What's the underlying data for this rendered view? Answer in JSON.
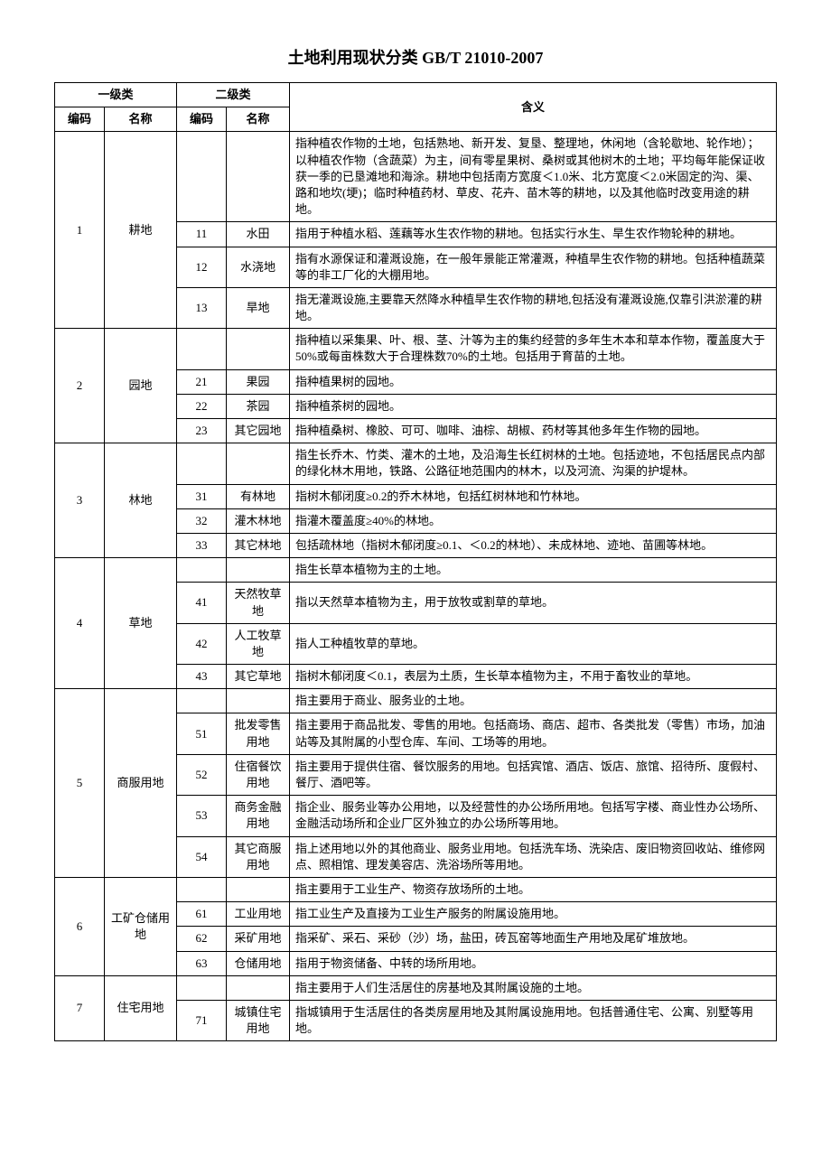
{
  "title": "土地利用现状分类 GB/T 21010-2007",
  "header": {
    "level1": "一级类",
    "level2": "二级类",
    "code": "编码",
    "name": "名称",
    "meaning": "含义"
  },
  "categories": [
    {
      "code": "1",
      "name": "耕地",
      "overview": "指种植农作物的土地，包括熟地、新开发、复垦、整理地，休闲地（含轮歇地、轮作地）；以种植农作物（含蔬菜）为主，间有零星果树、桑树或其他树木的土地；平均每年能保证收获一季的已垦滩地和海涂。耕地中包括南方宽度＜1.0米、北方宽度＜2.0米固定的沟、渠、路和地坎(埂)；临时种植药材、草皮、花卉、苗木等的耕地，以及其他临时改变用途的耕地。",
      "subs": [
        {
          "code": "11",
          "name": "水田",
          "meaning": "指用于种植水稻、莲藕等水生农作物的耕地。包括实行水生、旱生农作物轮种的耕地。"
        },
        {
          "code": "12",
          "name": "水浇地",
          "meaning": "指有水源保证和灌溉设施，在一般年景能正常灌溉，种植旱生农作物的耕地。包括种植蔬菜等的非工厂化的大棚用地。"
        },
        {
          "code": "13",
          "name": "旱地",
          "meaning": "指无灌溉设施,主要靠天然降水种植旱生农作物的耕地,包括没有灌溉设施,仅靠引洪淤灌的耕地。"
        }
      ]
    },
    {
      "code": "2",
      "name": "园地",
      "overview": "指种植以采集果、叶、根、茎、汁等为主的集约经营的多年生木本和草本作物，覆盖度大于50%或每亩株数大于合理株数70%的土地。包括用于育苗的土地。",
      "subs": [
        {
          "code": "21",
          "name": "果园",
          "meaning": "指种植果树的园地。"
        },
        {
          "code": "22",
          "name": "茶园",
          "meaning": "指种植茶树的园地。"
        },
        {
          "code": "23",
          "name": "其它园地",
          "meaning": "指种植桑树、橡胶、可可、咖啡、油棕、胡椒、药材等其他多年生作物的园地。"
        }
      ]
    },
    {
      "code": "3",
      "name": "林地",
      "overview": "指生长乔木、竹类、灌木的土地，及沿海生长红树林的土地。包括迹地，不包括居民点内部的绿化林木用地，铁路、公路征地范围内的林木，以及河流、沟渠的护堤林。",
      "subs": [
        {
          "code": "31",
          "name": "有林地",
          "meaning": "指树木郁闭度≥0.2的乔木林地，包括红树林地和竹林地。"
        },
        {
          "code": "32",
          "name": "灌木林地",
          "meaning": "指灌木覆盖度≥40%的林地。"
        },
        {
          "code": "33",
          "name": "其它林地",
          "meaning": "包括疏林地（指树木郁闭度≥0.1、＜0.2的林地）、未成林地、迹地、苗圃等林地。"
        }
      ]
    },
    {
      "code": "4",
      "name": "草地",
      "overview": "指生长草本植物为主的土地。",
      "subs": [
        {
          "code": "41",
          "name": "天然牧草地",
          "meaning": "指以天然草本植物为主，用于放牧或割草的草地。"
        },
        {
          "code": "42",
          "name": "人工牧草地",
          "meaning": "指人工种植牧草的草地。"
        },
        {
          "code": "43",
          "name": "其它草地",
          "meaning": "指树木郁闭度＜0.1，表层为土质，生长草本植物为主，不用于畜牧业的草地。"
        }
      ]
    },
    {
      "code": "5",
      "name": "商服用地",
      "overview": "指主要用于商业、服务业的土地。",
      "subs": [
        {
          "code": "51",
          "name": "批发零售用地",
          "meaning": "指主要用于商品批发、零售的用地。包括商场、商店、超市、各类批发（零售）市场，加油站等及其附属的小型仓库、车间、工场等的用地。"
        },
        {
          "code": "52",
          "name": "住宿餐饮用地",
          "meaning": "指主要用于提供住宿、餐饮服务的用地。包括宾馆、酒店、饭店、旅馆、招待所、度假村、餐厅、酒吧等。"
        },
        {
          "code": "53",
          "name": "商务金融用地",
          "meaning": "指企业、服务业等办公用地，以及经营性的办公场所用地。包括写字楼、商业性办公场所、金融活动场所和企业厂区外独立的办公场所等用地。"
        },
        {
          "code": "54",
          "name": "其它商服用地",
          "meaning": "指上述用地以外的其他商业、服务业用地。包括洗车场、洗染店、废旧物资回收站、维修网点、照相馆、理发美容店、洗浴场所等用地。"
        }
      ]
    },
    {
      "code": "6",
      "name": "工矿仓储用地",
      "overview": "指主要用于工业生产、物资存放场所的土地。",
      "subs": [
        {
          "code": "61",
          "name": "工业用地",
          "meaning": "指工业生产及直接为工业生产服务的附属设施用地。"
        },
        {
          "code": "62",
          "name": "采矿用地",
          "meaning": "指采矿、采石、采砂（沙）场，盐田，砖瓦窑等地面生产用地及尾矿堆放地。"
        },
        {
          "code": "63",
          "name": "仓储用地",
          "meaning": "指用于物资储备、中转的场所用地。"
        }
      ]
    },
    {
      "code": "7",
      "name": "住宅用地",
      "overview": "指主要用于人们生活居住的房基地及其附属设施的土地。",
      "subs": [
        {
          "code": "71",
          "name": "城镇住宅用地",
          "meaning": "指城镇用于生活居住的各类房屋用地及其附属设施用地。包括普通住宅、公寓、别墅等用地。"
        }
      ]
    }
  ]
}
